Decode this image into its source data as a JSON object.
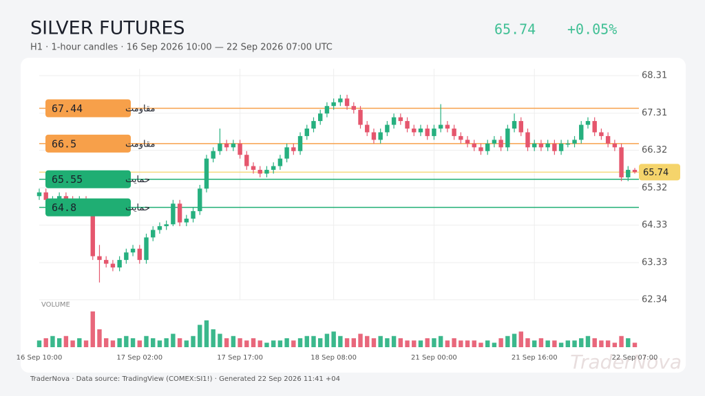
{
  "chart_data": {
    "type": "candlestick",
    "title": "SILVER FUTURES",
    "subtitle": "H1 · 1-hour candles · 16 Sep 2026 10:00 — 22 Sep 2026 07:00 UTC",
    "last_price": 65.74,
    "change": "+0.05%",
    "volume_label": "VOLUME",
    "footer": "TraderNova · Data source: TradingView (COMEX:SI1!) · Generated 22 Sep 2026 11:41 +04",
    "watermark": "TraderNova",
    "up_color": "#26b07f",
    "down_color": "#e5566d",
    "grid": true,
    "ylim": [
      62.34,
      68.31
    ],
    "yticks": [
      62.34,
      63.33,
      64.33,
      65.32,
      66.32,
      67.31,
      68.31
    ],
    "categories": [
      "16 Sep 10:00",
      null,
      null,
      null,
      null,
      null,
      null,
      null,
      null,
      null,
      null,
      null,
      null,
      null,
      null,
      "17 Sep 02:00",
      null,
      null,
      null,
      null,
      null,
      null,
      null,
      null,
      null,
      null,
      null,
      null,
      null,
      null,
      "17 Sep 17:00",
      null,
      null,
      null,
      null,
      null,
      null,
      null,
      null,
      null,
      null,
      null,
      null,
      null,
      "18 Sep 08:00",
      null,
      null,
      null,
      null,
      null,
      null,
      null,
      null,
      null,
      null,
      null,
      null,
      null,
      null,
      "21 Sep 00:00",
      null,
      null,
      null,
      null,
      null,
      null,
      null,
      null,
      null,
      null,
      null,
      null,
      null,
      null,
      "21 Sep 16:00",
      null,
      null,
      null,
      null,
      null,
      null,
      null,
      null,
      null,
      null,
      null,
      null,
      null,
      null,
      "22 Sep 07:00"
    ],
    "open": [
      65.1,
      65.2,
      65.0,
      65.0,
      65.1,
      65.0,
      64.9,
      65.0,
      64.9,
      63.5,
      63.4,
      63.3,
      63.2,
      63.4,
      63.6,
      63.7,
      63.4,
      64.0,
      64.2,
      64.3,
      64.35,
      64.9,
      64.4,
      64.5,
      64.7,
      65.3,
      66.1,
      66.3,
      66.5,
      66.4,
      66.5,
      66.2,
      65.9,
      65.8,
      65.7,
      65.8,
      65.9,
      66.1,
      66.4,
      66.3,
      66.7,
      66.9,
      67.1,
      67.3,
      67.5,
      67.6,
      67.7,
      67.5,
      67.4,
      67.0,
      66.8,
      66.6,
      66.8,
      67.0,
      67.2,
      67.1,
      66.9,
      66.8,
      66.9,
      66.7,
      66.9,
      67.0,
      66.9,
      66.7,
      66.6,
      66.5,
      66.4,
      66.3,
      66.5,
      66.6,
      66.4,
      66.9,
      67.1,
      66.8,
      66.4,
      66.5,
      66.4,
      66.5,
      66.3,
      66.5,
      66.5,
      66.6,
      67.0,
      67.1,
      66.8,
      66.7,
      66.5,
      66.4,
      65.6,
      65.8
    ],
    "high": [
      65.3,
      65.3,
      65.1,
      65.2,
      65.2,
      65.1,
      65.1,
      65.1,
      65.0,
      63.8,
      63.5,
      63.4,
      63.5,
      63.7,
      63.8,
      63.8,
      64.1,
      64.3,
      64.4,
      64.45,
      65.0,
      65.0,
      64.6,
      64.8,
      65.4,
      66.2,
      66.4,
      66.9,
      66.6,
      66.6,
      66.6,
      66.3,
      66.0,
      65.9,
      65.9,
      66.0,
      66.2,
      66.5,
      66.5,
      66.8,
      67.0,
      67.2,
      67.4,
      67.6,
      67.7,
      67.8,
      67.8,
      67.6,
      67.5,
      67.1,
      66.9,
      66.9,
      67.1,
      67.3,
      67.3,
      67.2,
      67.0,
      67.0,
      67.0,
      67.0,
      67.55,
      67.1,
      67.0,
      66.8,
      66.7,
      66.6,
      66.5,
      66.6,
      66.7,
      66.7,
      67.0,
      67.3,
      67.2,
      66.9,
      66.6,
      66.6,
      66.6,
      66.6,
      66.6,
      66.6,
      66.7,
      67.1,
      67.2,
      67.2,
      66.9,
      66.8,
      66.6,
      66.5,
      65.9,
      65.85
    ],
    "low": [
      65.0,
      64.9,
      64.9,
      64.9,
      64.9,
      64.8,
      64.8,
      64.8,
      63.4,
      62.8,
      63.2,
      63.1,
      63.1,
      63.3,
      63.5,
      63.3,
      63.3,
      63.9,
      64.1,
      64.2,
      64.3,
      64.3,
      64.3,
      64.4,
      64.6,
      65.2,
      66.0,
      66.2,
      66.3,
      66.3,
      66.1,
      65.8,
      65.7,
      65.6,
      65.6,
      65.7,
      65.8,
      66.0,
      66.2,
      66.2,
      66.6,
      66.8,
      67.0,
      67.2,
      67.4,
      67.5,
      67.4,
      67.3,
      66.9,
      66.7,
      66.5,
      66.5,
      66.7,
      66.9,
      67.0,
      66.8,
      66.7,
      66.7,
      66.6,
      66.6,
      66.8,
      66.8,
      66.6,
      66.5,
      66.4,
      66.3,
      66.2,
      66.2,
      66.4,
      66.3,
      66.3,
      66.8,
      66.7,
      66.3,
      66.3,
      66.3,
      66.3,
      66.2,
      66.2,
      66.4,
      66.4,
      66.5,
      66.9,
      66.7,
      66.6,
      66.4,
      66.3,
      65.5,
      65.5,
      65.7
    ],
    "close": [
      65.2,
      65.0,
      65.0,
      65.1,
      65.0,
      64.9,
      65.0,
      64.9,
      63.5,
      63.4,
      63.3,
      63.2,
      63.4,
      63.6,
      63.7,
      63.4,
      64.0,
      64.2,
      64.3,
      64.35,
      64.9,
      64.4,
      64.5,
      64.7,
      65.3,
      66.1,
      66.3,
      66.5,
      66.4,
      66.5,
      66.2,
      65.9,
      65.8,
      65.7,
      65.8,
      65.9,
      66.1,
      66.4,
      66.3,
      66.7,
      66.9,
      67.1,
      67.3,
      67.5,
      67.6,
      67.7,
      67.5,
      67.4,
      67.0,
      66.8,
      66.6,
      66.8,
      67.0,
      67.2,
      67.1,
      66.9,
      66.8,
      66.9,
      66.7,
      66.9,
      67.0,
      66.9,
      66.7,
      66.6,
      66.5,
      66.4,
      66.3,
      66.5,
      66.6,
      66.4,
      66.9,
      67.1,
      66.8,
      66.4,
      66.5,
      66.4,
      66.5,
      66.3,
      66.5,
      66.5,
      66.6,
      67.0,
      67.1,
      66.8,
      66.7,
      66.5,
      66.4,
      65.6,
      65.8,
      65.74
    ],
    "volume": [
      3,
      4,
      5,
      4,
      5,
      3,
      4,
      3,
      16,
      8,
      4,
      3,
      4,
      5,
      4,
      3,
      5,
      4,
      3,
      4,
      6,
      4,
      3,
      5,
      10,
      12,
      8,
      6,
      4,
      5,
      4,
      3,
      4,
      3,
      2,
      3,
      3,
      4,
      3,
      4,
      5,
      5,
      4,
      6,
      7,
      5,
      4,
      4,
      6,
      5,
      4,
      5,
      4,
      5,
      4,
      3,
      3,
      3,
      4,
      4,
      5,
      3,
      4,
      3,
      3,
      3,
      2,
      3,
      2,
      4,
      5,
      6,
      7,
      4,
      3,
      4,
      3,
      3,
      2,
      3,
      3,
      4,
      5,
      4,
      3,
      3,
      2,
      5,
      4,
      2
    ],
    "levels": [
      {
        "value": 67.44,
        "label": "مقاومت",
        "color": "#f7a04a"
      },
      {
        "value": 66.5,
        "label": "مقاومت",
        "color": "#f7a04a"
      },
      {
        "value": 65.55,
        "label": "حمایت",
        "color": "#1fae73"
      },
      {
        "value": 64.8,
        "label": "حمایت",
        "color": "#1fae73"
      }
    ],
    "last_color": "#f5d46b"
  }
}
